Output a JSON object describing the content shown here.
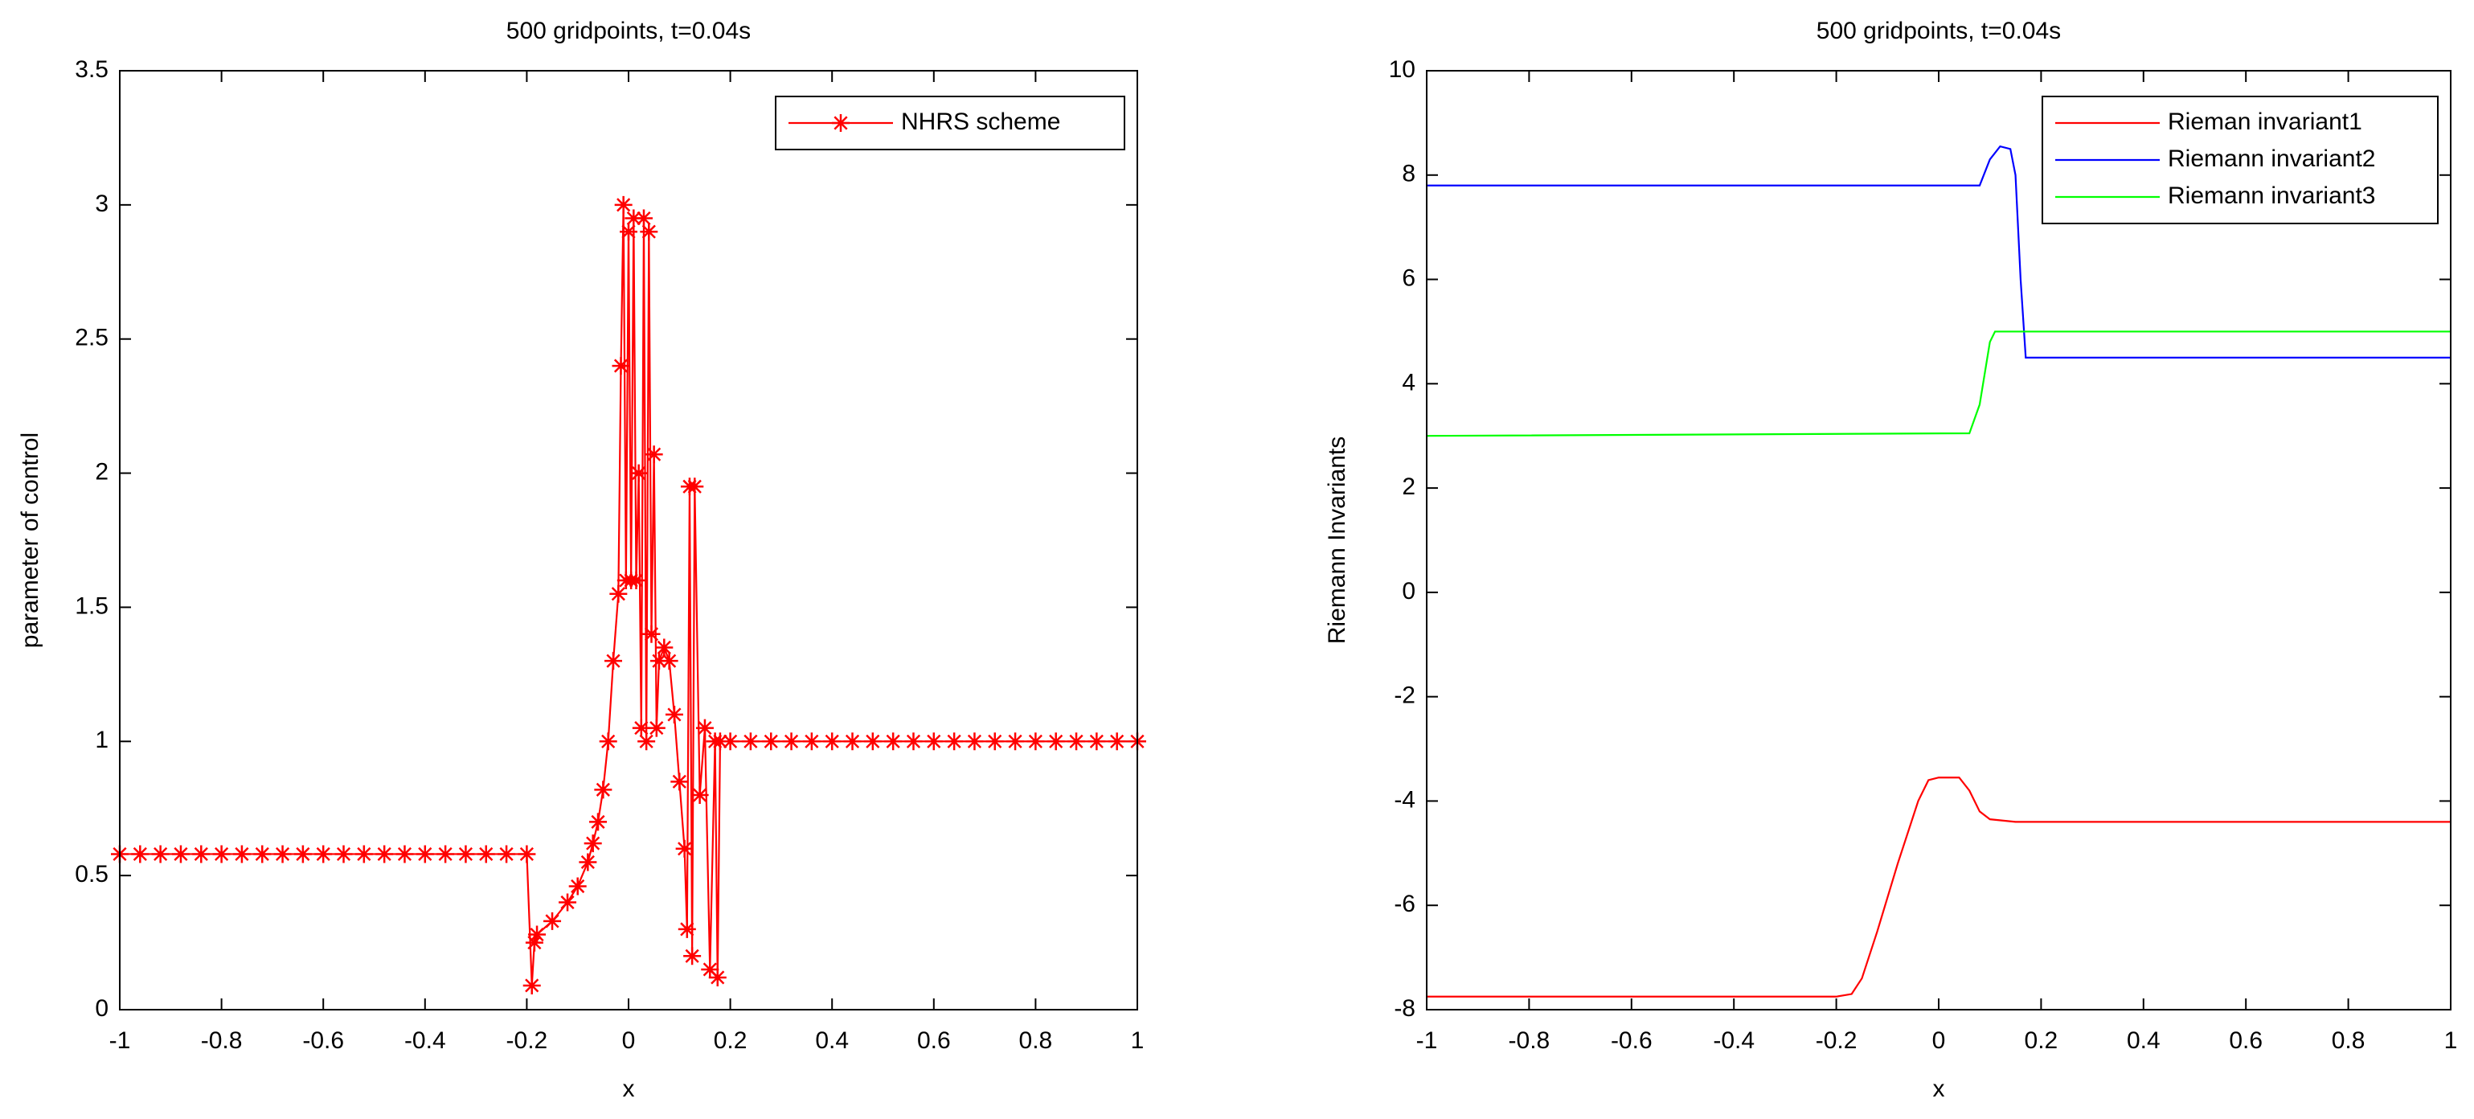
{
  "chart_data": [
    {
      "type": "line",
      "title": "500 gridpoints, t=0.04s",
      "x_label": "x",
      "y_label": "parameter of control",
      "xlim": [
        -1,
        1
      ],
      "ylim": [
        0,
        3.5
      ],
      "xticks": [
        -1,
        -0.8,
        -0.6,
        -0.4,
        -0.2,
        0,
        0.2,
        0.4,
        0.6,
        0.8,
        1
      ],
      "yticks": [
        0,
        0.5,
        1,
        1.5,
        2,
        2.5,
        3,
        3.5
      ],
      "legend": "northeast",
      "grid": false,
      "series": [
        {
          "name": "NHRS scheme",
          "color": "#ff0000",
          "marker": "*",
          "x": [
            -1,
            -0.96,
            -0.92,
            -0.88,
            -0.84,
            -0.8,
            -0.76,
            -0.72,
            -0.68,
            -0.64,
            -0.6,
            -0.56,
            -0.52,
            -0.48,
            -0.44,
            -0.4,
            -0.36,
            -0.32,
            -0.28,
            -0.24,
            -0.2,
            -0.19,
            -0.185,
            -0.18,
            -0.15,
            -0.12,
            -0.1,
            -0.08,
            -0.07,
            -0.06,
            -0.05,
            -0.04,
            -0.03,
            -0.02,
            -0.015,
            -0.01,
            -0.005,
            0,
            0.005,
            0.01,
            0.015,
            0.02,
            0.025,
            0.03,
            0.035,
            0.04,
            0.045,
            0.05,
            0.055,
            0.06,
            0.07,
            0.08,
            0.09,
            0.1,
            0.11,
            0.115,
            0.12,
            0.125,
            0.13,
            0.14,
            0.15,
            0.16,
            0.17,
            0.175,
            0.18,
            0.2,
            0.24,
            0.28,
            0.32,
            0.36,
            0.4,
            0.44,
            0.48,
            0.52,
            0.56,
            0.6,
            0.64,
            0.68,
            0.72,
            0.76,
            0.8,
            0.84,
            0.88,
            0.92,
            0.96,
            1
          ],
          "values": [
            0.58,
            0.58,
            0.58,
            0.58,
            0.58,
            0.58,
            0.58,
            0.58,
            0.58,
            0.58,
            0.58,
            0.58,
            0.58,
            0.58,
            0.58,
            0.58,
            0.58,
            0.58,
            0.58,
            0.58,
            0.58,
            0.09,
            0.25,
            0.28,
            0.33,
            0.4,
            0.46,
            0.55,
            0.62,
            0.7,
            0.82,
            1.0,
            1.3,
            1.55,
            2.4,
            3.0,
            1.6,
            2.9,
            1.6,
            2.95,
            1.6,
            2.0,
            1.05,
            2.95,
            1.0,
            2.9,
            1.4,
            2.07,
            1.05,
            1.3,
            1.35,
            1.3,
            1.1,
            0.85,
            0.6,
            0.3,
            1.95,
            0.2,
            1.95,
            0.8,
            1.05,
            0.15,
            1.0,
            0.12,
            1.0,
            1.0,
            1.0,
            1.0,
            1.0,
            1.0,
            1.0,
            1.0,
            1.0,
            1.0,
            1.0,
            1.0,
            1.0,
            1.0,
            1.0,
            1.0,
            1.0,
            1.0,
            1.0,
            1.0,
            1.0,
            1.0
          ]
        }
      ]
    },
    {
      "type": "line",
      "title": "500 gridpoints, t=0.04s",
      "x_label": "x",
      "y_label": "Riemann Invariants",
      "xlim": [
        -1,
        1
      ],
      "ylim": [
        -8,
        10
      ],
      "xticks": [
        -1,
        -0.8,
        -0.6,
        -0.4,
        -0.2,
        0,
        0.2,
        0.4,
        0.6,
        0.8,
        1
      ],
      "yticks": [
        -8,
        -6,
        -4,
        -2,
        0,
        2,
        4,
        6,
        8,
        10
      ],
      "legend": "northeast",
      "grid": false,
      "series": [
        {
          "name": "Rieman invariant1",
          "color": "#ff0000",
          "x": [
            -1,
            -0.2,
            -0.17,
            -0.15,
            -0.12,
            -0.08,
            -0.04,
            -0.02,
            0,
            0.04,
            0.06,
            0.08,
            0.1,
            0.15,
            1
          ],
          "values": [
            -7.75,
            -7.75,
            -7.7,
            -7.4,
            -6.5,
            -5.2,
            -4.0,
            -3.6,
            -3.55,
            -3.55,
            -3.8,
            -4.2,
            -4.35,
            -4.4,
            -4.4
          ]
        },
        {
          "name": "Riemann invariant2",
          "color": "#0000ff",
          "x": [
            -1,
            0.08,
            0.1,
            0.12,
            0.14,
            0.15,
            0.16,
            0.17,
            1
          ],
          "values": [
            7.8,
            7.8,
            8.3,
            8.55,
            8.5,
            8.0,
            6.0,
            4.5,
            4.5
          ]
        },
        {
          "name": "Riemann invariant3",
          "color": "#00ff00",
          "x": [
            -1,
            0.06,
            0.08,
            0.1,
            0.11,
            1
          ],
          "values": [
            3.0,
            3.05,
            3.6,
            4.8,
            5.0,
            5.0
          ]
        }
      ]
    }
  ]
}
